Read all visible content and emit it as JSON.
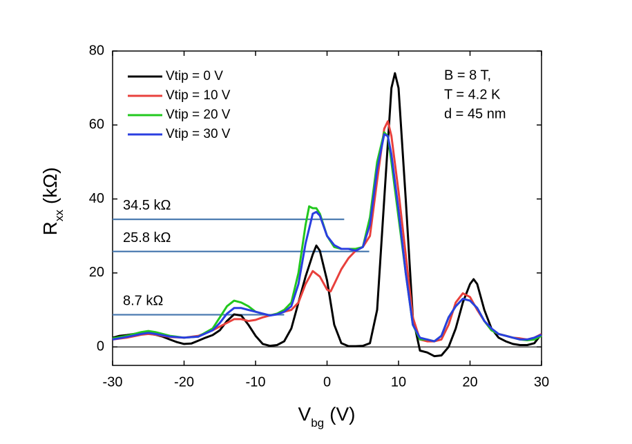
{
  "chart_data": {
    "type": "line",
    "xlabel": {
      "main": "V",
      "sub": "bg",
      "unit": "(V)"
    },
    "ylabel": {
      "main": "R",
      "sub": "xx",
      "unit": "(kΩ)"
    },
    "xlim": [
      -30,
      30
    ],
    "xticks": [
      -30,
      -20,
      -10,
      0,
      10,
      20,
      30
    ],
    "ylim": [
      -5,
      80
    ],
    "yticks": [
      0,
      20,
      40,
      60,
      80
    ],
    "zero_line": true,
    "legend": "upper-left",
    "notes": [
      "B = 8 T,",
      "T = 4.2 K",
      "d = 45 nm"
    ],
    "reference_lines": [
      {
        "label": "34.5 kΩ",
        "value": 34.5,
        "xrange": [
          -30,
          2.4
        ],
        "color": "#4a7ab0"
      },
      {
        "label": "25.8 kΩ",
        "value": 25.8,
        "xrange": [
          -30,
          5.9
        ],
        "color": "#4a7ab0"
      },
      {
        "label": "8.7 kΩ",
        "value": 8.7,
        "xrange": [
          -30,
          -6
        ],
        "color": "#4a7ab0"
      }
    ],
    "series": [
      {
        "name": "Vtip = 0 V",
        "color": "#000000",
        "x": [
          -30,
          -29,
          -28,
          -27,
          -26,
          -25,
          -24,
          -23,
          -22,
          -21,
          -20,
          -19,
          -18,
          -17,
          -16,
          -15,
          -14,
          -13,
          -12,
          -11,
          -10,
          -9,
          -8,
          -7,
          -6,
          -5,
          -4,
          -3,
          -2,
          -1.5,
          -1,
          0,
          1,
          2,
          3,
          4,
          5,
          6,
          7,
          8,
          9,
          9.5,
          10,
          11,
          12,
          13,
          14,
          15,
          16,
          17,
          18,
          19,
          20,
          20.5,
          21,
          22,
          23,
          24,
          25,
          26,
          27,
          28,
          29,
          30
        ],
        "values": [
          2.5,
          3,
          3.2,
          3.5,
          3.7,
          3.6,
          3.3,
          2.8,
          2,
          1.3,
          0.8,
          0.9,
          1.7,
          2.5,
          3.2,
          4.5,
          7,
          8.8,
          8.5,
          6,
          3,
          0.8,
          0.3,
          0.5,
          1.5,
          5,
          12,
          19,
          25,
          27.4,
          26,
          18,
          6,
          1,
          0.2,
          0.2,
          0.3,
          1,
          10,
          40,
          70,
          74,
          70,
          40,
          8,
          -1,
          -1.5,
          -2.5,
          -2.3,
          0,
          5,
          12,
          17,
          18.3,
          17,
          10,
          5,
          2.5,
          1.5,
          0.8,
          0.5,
          0.5,
          1,
          3.5
        ]
      },
      {
        "name": "Vtip = 10 V",
        "color": "#e8403c",
        "x": [
          -30,
          -28,
          -26,
          -25,
          -24,
          -22,
          -20,
          -18,
          -16,
          -14,
          -13,
          -12,
          -11,
          -10,
          -9,
          -8,
          -7,
          -6,
          -5,
          -4,
          -3,
          -2,
          -1,
          0,
          0.5,
          1,
          2,
          3,
          4,
          5,
          6,
          7,
          8,
          8.5,
          9,
          10,
          11,
          12,
          13,
          14,
          15,
          16,
          17,
          18,
          19,
          20,
          21,
          22,
          23,
          24,
          25,
          26,
          27,
          28,
          29,
          30
        ],
        "values": [
          2,
          2.5,
          3.3,
          3.5,
          3.3,
          2.7,
          2.5,
          3,
          4.5,
          6.5,
          7.5,
          7.5,
          7,
          7.3,
          8,
          8.5,
          9,
          9.5,
          10,
          12,
          17,
          20.5,
          19,
          15.5,
          15,
          17,
          21,
          24,
          26,
          27,
          30,
          45,
          59,
          61,
          57,
          42,
          25,
          8,
          2,
          1.5,
          1.5,
          2,
          6,
          12,
          14.5,
          13.5,
          10,
          7,
          4.5,
          3.5,
          3,
          2.5,
          2.3,
          2,
          2.5,
          3.5
        ]
      },
      {
        "name": "Vtip = 20 V",
        "color": "#22c81e",
        "x": [
          -30,
          -28,
          -26,
          -25,
          -24,
          -22,
          -20,
          -18,
          -16,
          -15,
          -14,
          -13,
          -12,
          -11,
          -10,
          -9,
          -8,
          -7,
          -6,
          -5,
          -4,
          -3,
          -2.5,
          -2,
          -1.5,
          -1,
          0,
          1,
          2,
          3,
          4,
          5,
          6,
          7,
          8,
          8.5,
          9,
          10,
          11,
          12,
          13,
          14,
          15,
          16,
          17,
          18,
          19,
          20,
          21,
          22,
          23,
          24,
          25,
          26,
          27,
          28,
          29,
          30
        ],
        "values": [
          2.3,
          3,
          4,
          4.3,
          4,
          3,
          2.5,
          2.8,
          5,
          8,
          11,
          12.5,
          12,
          11,
          9.5,
          9,
          8.5,
          9,
          10,
          12,
          20,
          33,
          38,
          37.5,
          37.5,
          36,
          30,
          27,
          26.5,
          26.5,
          26.5,
          27,
          35,
          50,
          58,
          57,
          50,
          35,
          20,
          6,
          2,
          2,
          1.5,
          3,
          8,
          11,
          13,
          12.5,
          10.5,
          7,
          4.5,
          3.5,
          3,
          2.5,
          2,
          1.8,
          2,
          3
        ]
      },
      {
        "name": "Vtip = 30 V",
        "color": "#2a3ee0",
        "x": [
          -30,
          -28,
          -26,
          -25,
          -24,
          -22,
          -20,
          -18,
          -16,
          -15,
          -14,
          -13,
          -12,
          -11,
          -10,
          -9,
          -8,
          -7,
          -6,
          -5,
          -4,
          -3,
          -2,
          -1.5,
          -1,
          0,
          1,
          2,
          3,
          4,
          5,
          6,
          7,
          8,
          8.5,
          9,
          10,
          11,
          12,
          13,
          14,
          15,
          16,
          17,
          18,
          19,
          20,
          21,
          22,
          23,
          24,
          25,
          26,
          27,
          28,
          29,
          30
        ],
        "values": [
          2,
          2.7,
          3.5,
          3.8,
          3.5,
          2.8,
          2.5,
          2.8,
          4.5,
          6.5,
          9,
          10.5,
          10.5,
          10,
          9.5,
          9,
          8.5,
          8.8,
          9.5,
          11,
          17,
          28,
          36,
          36.5,
          35.5,
          30,
          27.5,
          26.5,
          26.5,
          26,
          27,
          33,
          48,
          57.5,
          57,
          52,
          37,
          20,
          6,
          2.5,
          2,
          1.5,
          3,
          8,
          11,
          13,
          12.5,
          10.5,
          7,
          5,
          3.5,
          3,
          2.5,
          2,
          2,
          2.5,
          3.3
        ]
      }
    ]
  }
}
